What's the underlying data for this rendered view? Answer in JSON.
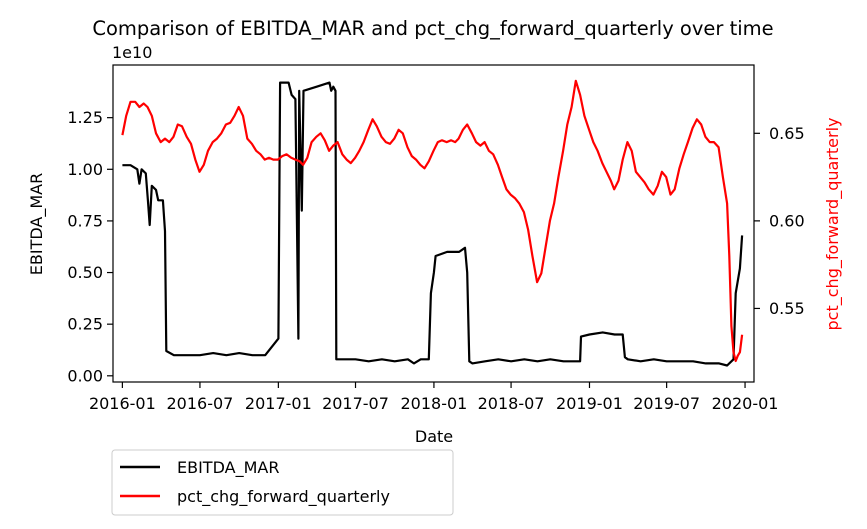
{
  "chart_data": {
    "type": "line",
    "title": "Comparison of EBITDA_MAR and pct_chg_forward_quarterly over time",
    "xlabel": "Date",
    "x_ticks": [
      "2016-01",
      "2016-07",
      "2017-01",
      "2017-07",
      "2018-01",
      "2018-07",
      "2019-01",
      "2019-07",
      "2020-01"
    ],
    "x_range": [
      "2015-12-10",
      "2020-01-22"
    ],
    "left_axis": {
      "label": "EBITDA_MAR",
      "offset_text": "1e10",
      "ticks": [
        "0.00",
        "0.25",
        "0.50",
        "0.75",
        "1.00",
        "1.25"
      ],
      "ylim": [
        -0.03,
        1.505
      ]
    },
    "right_axis": {
      "label": "pct_chg_forward_quarterly",
      "ticks": [
        "0.55",
        "0.60",
        "0.65"
      ],
      "ylim": [
        0.508,
        0.689
      ]
    },
    "grid": false,
    "legend_position": "below-left",
    "series": [
      {
        "name": "EBITDA_MAR",
        "axis": "left",
        "color": "#000000",
        "unit_multiplier": "1e10",
        "points": [
          [
            "2016-01-01",
            1.02
          ],
          [
            "2016-01-20",
            1.02
          ],
          [
            "2016-02-05",
            1.0
          ],
          [
            "2016-02-10",
            0.93
          ],
          [
            "2016-02-15",
            1.0
          ],
          [
            "2016-02-25",
            0.98
          ],
          [
            "2016-03-01",
            0.85
          ],
          [
            "2016-03-05",
            0.73
          ],
          [
            "2016-03-10",
            0.92
          ],
          [
            "2016-03-20",
            0.9
          ],
          [
            "2016-03-25",
            0.85
          ],
          [
            "2016-04-05",
            0.85
          ],
          [
            "2016-04-10",
            0.7
          ],
          [
            "2016-04-13",
            0.12
          ],
          [
            "2016-05-01",
            0.1
          ],
          [
            "2016-06-01",
            0.1
          ],
          [
            "2016-07-01",
            0.1
          ],
          [
            "2016-08-01",
            0.11
          ],
          [
            "2016-09-01",
            0.1
          ],
          [
            "2016-10-01",
            0.11
          ],
          [
            "2016-11-01",
            0.1
          ],
          [
            "2016-12-01",
            0.1
          ],
          [
            "2017-01-01",
            0.18
          ],
          [
            "2017-01-05",
            1.42
          ],
          [
            "2017-01-25",
            1.42
          ],
          [
            "2017-02-01",
            1.36
          ],
          [
            "2017-02-10",
            1.34
          ],
          [
            "2017-02-17",
            0.18
          ],
          [
            "2017-02-19",
            1.38
          ],
          [
            "2017-02-25",
            0.8
          ],
          [
            "2017-03-01",
            1.38
          ],
          [
            "2017-04-01",
            1.4
          ],
          [
            "2017-05-01",
            1.42
          ],
          [
            "2017-05-05",
            1.38
          ],
          [
            "2017-05-10",
            1.4
          ],
          [
            "2017-05-15",
            1.38
          ],
          [
            "2017-05-17",
            0.08
          ],
          [
            "2017-06-01",
            0.08
          ],
          [
            "2017-07-01",
            0.08
          ],
          [
            "2017-08-01",
            0.07
          ],
          [
            "2017-09-01",
            0.08
          ],
          [
            "2017-10-01",
            0.07
          ],
          [
            "2017-11-01",
            0.08
          ],
          [
            "2017-11-15",
            0.06
          ],
          [
            "2017-12-01",
            0.08
          ],
          [
            "2017-12-20",
            0.08
          ],
          [
            "2017-12-25",
            0.4
          ],
          [
            "2018-01-01",
            0.5
          ],
          [
            "2018-01-05",
            0.58
          ],
          [
            "2018-02-01",
            0.6
          ],
          [
            "2018-03-01",
            0.6
          ],
          [
            "2018-03-15",
            0.62
          ],
          [
            "2018-03-20",
            0.5
          ],
          [
            "2018-03-25",
            0.07
          ],
          [
            "2018-04-01",
            0.06
          ],
          [
            "2018-05-01",
            0.07
          ],
          [
            "2018-06-01",
            0.08
          ],
          [
            "2018-07-01",
            0.07
          ],
          [
            "2018-08-01",
            0.08
          ],
          [
            "2018-09-01",
            0.07
          ],
          [
            "2018-10-01",
            0.08
          ],
          [
            "2018-11-01",
            0.07
          ],
          [
            "2018-12-01",
            0.07
          ],
          [
            "2018-12-10",
            0.07
          ],
          [
            "2018-12-12",
            0.19
          ],
          [
            "2019-01-01",
            0.2
          ],
          [
            "2019-02-01",
            0.21
          ],
          [
            "2019-03-01",
            0.2
          ],
          [
            "2019-03-20",
            0.2
          ],
          [
            "2019-03-25",
            0.09
          ],
          [
            "2019-04-01",
            0.08
          ],
          [
            "2019-05-01",
            0.07
          ],
          [
            "2019-06-01",
            0.08
          ],
          [
            "2019-07-01",
            0.07
          ],
          [
            "2019-08-01",
            0.07
          ],
          [
            "2019-09-01",
            0.07
          ],
          [
            "2019-10-01",
            0.06
          ],
          [
            "2019-11-01",
            0.06
          ],
          [
            "2019-11-20",
            0.05
          ],
          [
            "2019-12-05",
            0.08
          ],
          [
            "2019-12-10",
            0.4
          ],
          [
            "2019-12-20",
            0.52
          ],
          [
            "2019-12-25",
            0.68
          ]
        ]
      },
      {
        "name": "pct_chg_forward_quarterly",
        "axis": "right",
        "color": "#ff0000",
        "points": [
          [
            "2016-01-01",
            0.649
          ],
          [
            "2016-01-10",
            0.66
          ],
          [
            "2016-01-20",
            0.668
          ],
          [
            "2016-01-31",
            0.668
          ],
          [
            "2016-02-10",
            0.665
          ],
          [
            "2016-02-20",
            0.667
          ],
          [
            "2016-02-29",
            0.665
          ],
          [
            "2016-03-10",
            0.66
          ],
          [
            "2016-03-20",
            0.65
          ],
          [
            "2016-03-31",
            0.645
          ],
          [
            "2016-04-10",
            0.647
          ],
          [
            "2016-04-20",
            0.645
          ],
          [
            "2016-04-30",
            0.648
          ],
          [
            "2016-05-10",
            0.655
          ],
          [
            "2016-05-20",
            0.654
          ],
          [
            "2016-05-31",
            0.648
          ],
          [
            "2016-06-10",
            0.644
          ],
          [
            "2016-06-20",
            0.635
          ],
          [
            "2016-06-30",
            0.628
          ],
          [
            "2016-07-10",
            0.632
          ],
          [
            "2016-07-20",
            0.64
          ],
          [
            "2016-07-31",
            0.645
          ],
          [
            "2016-08-10",
            0.647
          ],
          [
            "2016-08-20",
            0.65
          ],
          [
            "2016-08-31",
            0.655
          ],
          [
            "2016-09-10",
            0.656
          ],
          [
            "2016-09-20",
            0.66
          ],
          [
            "2016-09-30",
            0.665
          ],
          [
            "2016-10-10",
            0.66
          ],
          [
            "2016-10-20",
            0.647
          ],
          [
            "2016-10-31",
            0.644
          ],
          [
            "2016-11-10",
            0.64
          ],
          [
            "2016-11-20",
            0.638
          ],
          [
            "2016-11-30",
            0.635
          ],
          [
            "2016-12-10",
            0.636
          ],
          [
            "2016-12-20",
            0.635
          ],
          [
            "2016-12-31",
            0.635
          ],
          [
            "2017-01-10",
            0.637
          ],
          [
            "2017-01-20",
            0.638
          ],
          [
            "2017-01-31",
            0.636
          ],
          [
            "2017-02-10",
            0.635
          ],
          [
            "2017-02-20",
            0.634
          ],
          [
            "2017-02-28",
            0.632
          ],
          [
            "2017-03-10",
            0.636
          ],
          [
            "2017-03-20",
            0.645
          ],
          [
            "2017-03-31",
            0.648
          ],
          [
            "2017-04-10",
            0.65
          ],
          [
            "2017-04-20",
            0.646
          ],
          [
            "2017-04-30",
            0.64
          ],
          [
            "2017-05-10",
            0.643
          ],
          [
            "2017-05-20",
            0.645
          ],
          [
            "2017-05-31",
            0.638
          ],
          [
            "2017-06-10",
            0.635
          ],
          [
            "2017-06-20",
            0.633
          ],
          [
            "2017-06-30",
            0.636
          ],
          [
            "2017-07-10",
            0.64
          ],
          [
            "2017-07-20",
            0.645
          ],
          [
            "2017-07-31",
            0.652
          ],
          [
            "2017-08-10",
            0.658
          ],
          [
            "2017-08-20",
            0.654
          ],
          [
            "2017-08-31",
            0.648
          ],
          [
            "2017-09-10",
            0.645
          ],
          [
            "2017-09-20",
            0.644
          ],
          [
            "2017-09-30",
            0.647
          ],
          [
            "2017-10-10",
            0.652
          ],
          [
            "2017-10-20",
            0.65
          ],
          [
            "2017-10-31",
            0.642
          ],
          [
            "2017-11-10",
            0.637
          ],
          [
            "2017-11-20",
            0.635
          ],
          [
            "2017-11-30",
            0.632
          ],
          [
            "2017-12-10",
            0.63
          ],
          [
            "2017-12-20",
            0.634
          ],
          [
            "2017-12-31",
            0.64
          ],
          [
            "2018-01-10",
            0.645
          ],
          [
            "2018-01-20",
            0.646
          ],
          [
            "2018-01-31",
            0.645
          ],
          [
            "2018-02-10",
            0.646
          ],
          [
            "2018-02-20",
            0.645
          ],
          [
            "2018-02-28",
            0.647
          ],
          [
            "2018-03-10",
            0.652
          ],
          [
            "2018-03-20",
            0.655
          ],
          [
            "2018-03-31",
            0.65
          ],
          [
            "2018-04-10",
            0.645
          ],
          [
            "2018-04-20",
            0.643
          ],
          [
            "2018-04-30",
            0.645
          ],
          [
            "2018-05-10",
            0.64
          ],
          [
            "2018-05-20",
            0.638
          ],
          [
            "2018-05-31",
            0.632
          ],
          [
            "2018-06-10",
            0.625
          ],
          [
            "2018-06-20",
            0.618
          ],
          [
            "2018-06-30",
            0.615
          ],
          [
            "2018-07-10",
            0.613
          ],
          [
            "2018-07-20",
            0.61
          ],
          [
            "2018-07-31",
            0.605
          ],
          [
            "2018-08-10",
            0.595
          ],
          [
            "2018-08-20",
            0.58
          ],
          [
            "2018-08-31",
            0.565
          ],
          [
            "2018-09-10",
            0.57
          ],
          [
            "2018-09-20",
            0.585
          ],
          [
            "2018-09-30",
            0.6
          ],
          [
            "2018-10-10",
            0.61
          ],
          [
            "2018-10-20",
            0.625
          ],
          [
            "2018-10-31",
            0.64
          ],
          [
            "2018-11-10",
            0.655
          ],
          [
            "2018-11-20",
            0.665
          ],
          [
            "2018-11-30",
            0.68
          ],
          [
            "2018-12-10",
            0.672
          ],
          [
            "2018-12-20",
            0.66
          ],
          [
            "2018-12-31",
            0.652
          ],
          [
            "2019-01-10",
            0.645
          ],
          [
            "2019-01-20",
            0.64
          ],
          [
            "2019-01-31",
            0.633
          ],
          [
            "2019-02-10",
            0.628
          ],
          [
            "2019-02-20",
            0.623
          ],
          [
            "2019-02-28",
            0.618
          ],
          [
            "2019-03-10",
            0.623
          ],
          [
            "2019-03-20",
            0.635
          ],
          [
            "2019-03-31",
            0.645
          ],
          [
            "2019-04-10",
            0.64
          ],
          [
            "2019-04-20",
            0.628
          ],
          [
            "2019-04-30",
            0.625
          ],
          [
            "2019-05-10",
            0.622
          ],
          [
            "2019-05-20",
            0.618
          ],
          [
            "2019-05-31",
            0.615
          ],
          [
            "2019-06-10",
            0.62
          ],
          [
            "2019-06-20",
            0.628
          ],
          [
            "2019-06-30",
            0.625
          ],
          [
            "2019-07-10",
            0.615
          ],
          [
            "2019-07-20",
            0.618
          ],
          [
            "2019-07-31",
            0.63
          ],
          [
            "2019-08-10",
            0.638
          ],
          [
            "2019-08-20",
            0.645
          ],
          [
            "2019-08-31",
            0.653
          ],
          [
            "2019-09-10",
            0.658
          ],
          [
            "2019-09-20",
            0.655
          ],
          [
            "2019-09-30",
            0.648
          ],
          [
            "2019-10-10",
            0.645
          ],
          [
            "2019-10-20",
            0.645
          ],
          [
            "2019-10-31",
            0.642
          ],
          [
            "2019-11-10",
            0.625
          ],
          [
            "2019-11-20",
            0.61
          ],
          [
            "2019-11-25",
            0.58
          ],
          [
            "2019-11-30",
            0.54
          ],
          [
            "2019-12-05",
            0.525
          ],
          [
            "2019-12-10",
            0.52
          ],
          [
            "2019-12-15",
            0.523
          ],
          [
            "2019-12-20",
            0.525
          ],
          [
            "2019-12-25",
            0.535
          ]
        ]
      }
    ]
  }
}
